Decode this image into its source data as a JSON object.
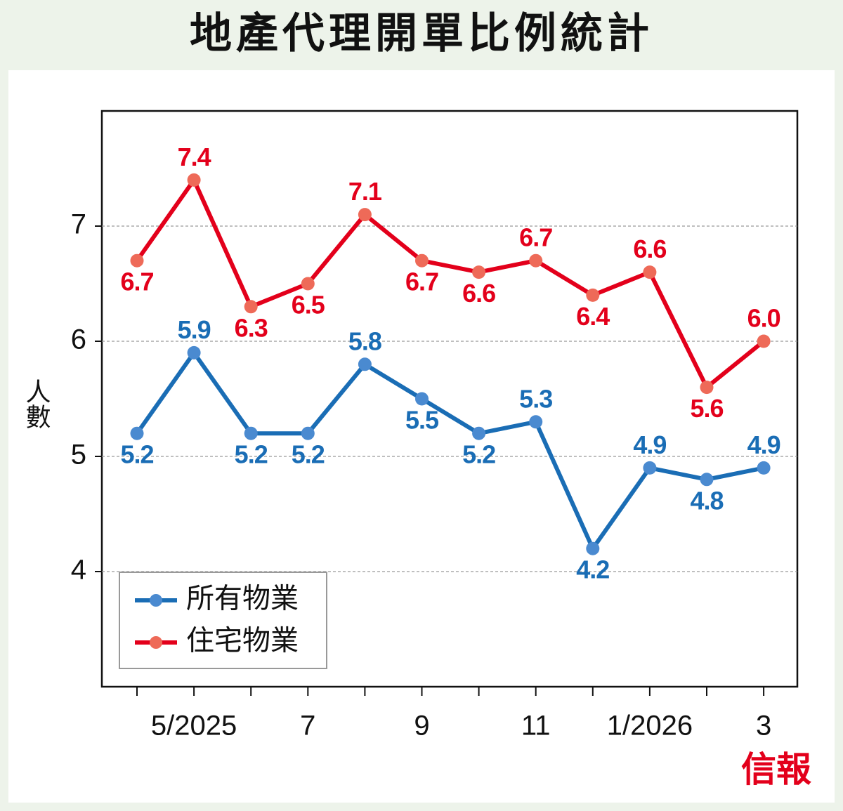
{
  "chart_data": {
    "type": "line",
    "title": "地產代理開單比例統計",
    "ylabel": "人數",
    "categories": [
      null,
      "5/2025",
      null,
      "7",
      null,
      "9",
      null,
      "11",
      null,
      "1/2026",
      null,
      "3"
    ],
    "series": [
      {
        "name": "所有物業",
        "color": "#1a6db5",
        "marker_color": "#4a8ad0",
        "values": [
          5.2,
          5.9,
          5.2,
          5.2,
          5.8,
          5.5,
          5.2,
          5.3,
          4.2,
          4.9,
          4.8,
          4.9
        ],
        "value_labels": [
          "5.2",
          "5.9",
          "5.2",
          "5.2",
          "5.8",
          "5.5",
          "5.2",
          "5.3",
          "4.2",
          "4.9",
          "4.8",
          "4.9"
        ]
      },
      {
        "name": "住宅物業",
        "color": "#e3001b",
        "marker_color": "#ee6a58",
        "values": [
          6.7,
          7.4,
          6.3,
          6.5,
          7.1,
          6.7,
          6.6,
          6.7,
          6.4,
          6.6,
          5.6,
          6.0
        ],
        "value_labels": [
          "6.7",
          "7.4",
          "6.3",
          "6.5",
          "7.1",
          "6.7",
          "6.6",
          "6.7",
          "6.4",
          "6.6",
          "5.6",
          "6.0"
        ]
      }
    ],
    "ylim": [
      3,
      8
    ],
    "yticks": [
      4,
      5,
      6,
      7
    ],
    "grid": true,
    "legend": "lower left",
    "source": "信報"
  }
}
